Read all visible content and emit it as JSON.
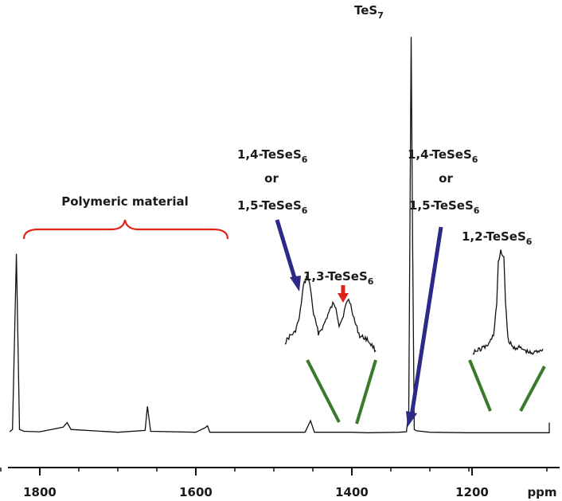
{
  "chart_data": {
    "type": "line",
    "title": "",
    "xlabel": "ppm",
    "ylabel": "",
    "x_axis_reversed": true,
    "xlim": [
      1880,
      1860
    ],
    "ticks": [
      "1800",
      "1600",
      "1400",
      "1200"
    ],
    "tick_values": [
      1800,
      1600,
      1400,
      1200
    ],
    "unit_label": "ppm",
    "grid": false,
    "legend": "none",
    "series": [
      {
        "x": [
          1880,
          1850,
          1835,
          1830,
          1826,
          1820,
          1800,
          1770,
          1765,
          1760,
          1700,
          1665,
          1662,
          1658,
          1600,
          1588,
          1585,
          1582,
          1500,
          1460,
          1453,
          1448,
          1400,
          1380,
          1340,
          1330,
          1327,
          1324,
          1322,
          1320,
          1317,
          1300,
          1250,
          1200,
          1130,
          1128,
          1125,
          1100,
          1000
        ],
        "y": [
          0.5,
          0.5,
          1,
          39,
          1,
          0.6,
          0.5,
          1.5,
          2.5,
          1,
          0.4,
          0.8,
          6,
          0.6,
          0.4,
          1.4,
          1.8,
          0.4,
          0.4,
          0.4,
          2.9,
          0.4,
          0.4,
          0.3,
          0.4,
          0.5,
          5,
          86,
          40,
          1,
          0.7,
          0.4,
          0.3,
          0.3,
          0.3,
          2.5,
          0.3,
          0.3,
          0.3
        ]
      }
    ],
    "annotations": {
      "polymer": "Polymeric material",
      "tes7": "TeS",
      "tes7_sub": "7",
      "left_label_1": "1,4-TeSeS",
      "left_label_1_sub": "6",
      "left_or": "or",
      "left_label_2": "1,5-TeSeS",
      "left_label_2_sub": "6",
      "mid_label": "1,3-TeSeS",
      "mid_label_sub": "6",
      "right_label_1": "1,4-TeSeS",
      "right_label_1_sub": "6",
      "right_or": "or",
      "right_label_2": "1,5-TeSeS",
      "right_label_2_sub": "6",
      "far_right_label": "1,2-TeSeS",
      "far_right_label_sub": "6"
    },
    "colors": {
      "spectrum": "#111111",
      "bracket": "#e0231a",
      "blue_arrow": "#2c2a86",
      "red_arrow": "#e0231a",
      "green_line": "#3a7a2a"
    }
  }
}
